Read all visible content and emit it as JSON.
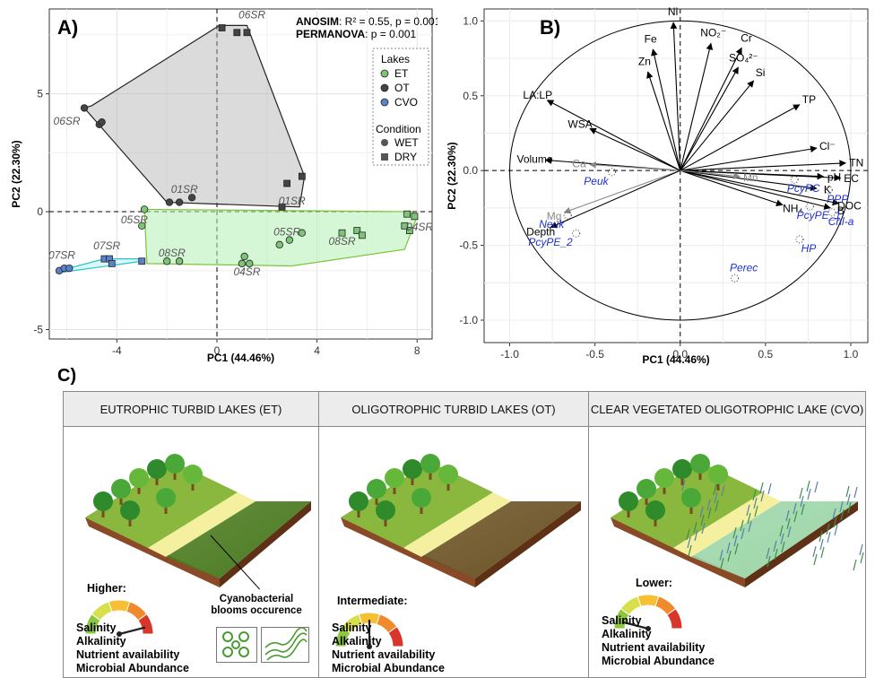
{
  "panelA": {
    "letter": "A)",
    "anosim_bold": "ANOSIM",
    "anosim_rest": ": R² = 0.55, p = 0.001",
    "permanova_bold": "PERMANOVA",
    "permanova_rest": ": p = 0.001",
    "xlabel": "PC1 (44.46%)",
    "ylabel": "PC2 (22.30%)",
    "legend": {
      "lakes_title": "Lakes",
      "lakes": [
        {
          "label": "ET",
          "color": "#7cc576"
        },
        {
          "label": "OT",
          "color": "#444444"
        },
        {
          "label": "CVO",
          "color": "#5b82c9"
        }
      ],
      "condition_title": "Condition",
      "conditions": [
        {
          "label": "WET",
          "shape": "circle"
        },
        {
          "label": "DRY",
          "shape": "square"
        }
      ]
    }
  },
  "panelB": {
    "letter": "B)",
    "xlabel": "PC1 (44.46%)",
    "ylabel": "PC2 (22.30%)"
  },
  "chart_data": [
    {
      "type": "scatter",
      "panel": "A",
      "xlabel": "PC1 (44.46%)",
      "ylabel": "PC2 (22.30%)",
      "xlim": [
        -6.7,
        8.6
      ],
      "ylim": [
        -5.4,
        8.6
      ],
      "xticks": [
        -4,
        0,
        4,
        8
      ],
      "yticks": [
        -5,
        0,
        5
      ],
      "grid": true,
      "legend_position": "top-right",
      "series": [
        {
          "name": "OT",
          "color": "#444444",
          "hull": [
            [
              0.1,
              7.9
            ],
            [
              1.2,
              7.9
            ],
            [
              3.5,
              1.5
            ],
            [
              3.3,
              0.2
            ],
            [
              -2.0,
              0.4
            ],
            [
              -5.3,
              4.4
            ],
            [
              -5.0,
              4.5
            ]
          ],
          "points": [
            {
              "x": 0.2,
              "y": 7.8,
              "shape": "square"
            },
            {
              "x": 0.8,
              "y": 7.6,
              "shape": "square"
            },
            {
              "x": 1.2,
              "y": 7.6,
              "shape": "square"
            },
            {
              "x": -5.3,
              "y": 4.4,
              "shape": "circle"
            },
            {
              "x": -4.7,
              "y": 3.7,
              "shape": "circle"
            },
            {
              "x": -4.6,
              "y": 3.8,
              "shape": "circle"
            },
            {
              "x": -1.9,
              "y": 0.4,
              "shape": "circle"
            },
            {
              "x": -1.5,
              "y": 0.4,
              "shape": "circle"
            },
            {
              "x": -1.0,
              "y": 0.6,
              "shape": "circle"
            },
            {
              "x": 2.8,
              "y": 1.2,
              "shape": "square"
            },
            {
              "x": 3.4,
              "y": 1.5,
              "shape": "square"
            },
            {
              "x": 2.6,
              "y": 0.2,
              "shape": "square"
            }
          ]
        },
        {
          "name": "ET",
          "color": "#7cc576",
          "hull": [
            [
              -2.9,
              0.1
            ],
            [
              7.8,
              0.0
            ],
            [
              8.0,
              -0.2
            ],
            [
              7.5,
              -1.6
            ],
            [
              3.0,
              -2.3
            ],
            [
              -2.8,
              -2.2
            ]
          ],
          "points": [
            {
              "x": -2.9,
              "y": 0.1,
              "shape": "circle"
            },
            {
              "x": -3.0,
              "y": -0.6,
              "shape": "circle"
            },
            {
              "x": -2.0,
              "y": -2.1,
              "shape": "circle"
            },
            {
              "x": -1.5,
              "y": -2.1,
              "shape": "circle"
            },
            {
              "x": 1.0,
              "y": -2.2,
              "shape": "circle"
            },
            {
              "x": 1.3,
              "y": -2.2,
              "shape": "circle"
            },
            {
              "x": 1.1,
              "y": -1.9,
              "shape": "circle"
            },
            {
              "x": 2.5,
              "y": -1.4,
              "shape": "circle"
            },
            {
              "x": 2.9,
              "y": -1.2,
              "shape": "circle"
            },
            {
              "x": 3.4,
              "y": -0.9,
              "shape": "circle"
            },
            {
              "x": 5.6,
              "y": -0.8,
              "shape": "square"
            },
            {
              "x": 5.8,
              "y": -1.0,
              "shape": "square"
            },
            {
              "x": 5.0,
              "y": -0.9,
              "shape": "square"
            },
            {
              "x": 7.6,
              "y": -0.1,
              "shape": "square"
            },
            {
              "x": 7.9,
              "y": -0.2,
              "shape": "square"
            },
            {
              "x": 7.7,
              "y": -0.8,
              "shape": "square"
            },
            {
              "x": 7.5,
              "y": -0.6,
              "shape": "square"
            }
          ]
        },
        {
          "name": "CVO",
          "color": "#5b82c9",
          "hull": [
            [
              -6.3,
              -2.5
            ],
            [
              -4.5,
              -2.0
            ],
            [
              -3.0,
              -2.0
            ],
            [
              -3.0,
              -2.1
            ],
            [
              -6.4,
              -2.6
            ]
          ],
          "points": [
            {
              "x": -6.3,
              "y": -2.5,
              "shape": "circle"
            },
            {
              "x": -6.1,
              "y": -2.4,
              "shape": "circle"
            },
            {
              "x": -5.9,
              "y": -2.4,
              "shape": "circle"
            },
            {
              "x": -4.5,
              "y": -2.0,
              "shape": "square"
            },
            {
              "x": -4.3,
              "y": -2.0,
              "shape": "square"
            },
            {
              "x": -4.2,
              "y": -2.2,
              "shape": "square"
            },
            {
              "x": -3.0,
              "y": -2.1,
              "shape": "square"
            }
          ]
        }
      ],
      "annotations": [
        {
          "text": "06SR",
          "x": 1.4,
          "y": 8.2
        },
        {
          "text": "06SR",
          "x": -6.0,
          "y": 3.7
        },
        {
          "text": "01SR",
          "x": -1.3,
          "y": 0.8
        },
        {
          "text": "01SR",
          "x": 3.0,
          "y": 0.3
        },
        {
          "text": "05SR",
          "x": -3.3,
          "y": -0.5
        },
        {
          "text": "05SR",
          "x": 2.8,
          "y": -1.0
        },
        {
          "text": "08SR",
          "x": -1.8,
          "y": -1.9
        },
        {
          "text": "08SR",
          "x": 5.0,
          "y": -1.4
        },
        {
          "text": "04SR",
          "x": 8.1,
          "y": -0.8
        },
        {
          "text": "04SR",
          "x": 1.2,
          "y": -2.7
        },
        {
          "text": "07SR",
          "x": -6.2,
          "y": -2.0
        },
        {
          "text": "07SR",
          "x": -4.4,
          "y": -1.6
        }
      ]
    },
    {
      "type": "scatter",
      "panel": "B",
      "xlabel": "PC1 (44.46%)",
      "ylabel": "PC2 (22.30%)",
      "xlim": [
        -1.15,
        1.1
      ],
      "ylim": [
        -1.15,
        1.08
      ],
      "xticks": [
        -1.0,
        -0.5,
        0.0,
        0.5,
        1.0
      ],
      "yticks": [
        -1.0,
        -0.5,
        0.0,
        0.5,
        1.0
      ],
      "grid": true,
      "unit_circle": true,
      "vectors": [
        {
          "label": "Ni",
          "x": -0.04,
          "y": 0.99,
          "color": "#000000"
        },
        {
          "label": "NO₂⁻",
          "x": 0.18,
          "y": 0.85,
          "color": "#000000"
        },
        {
          "label": "Cr",
          "x": 0.36,
          "y": 0.82,
          "color": "#000000"
        },
        {
          "label": "Fe",
          "x": -0.16,
          "y": 0.81,
          "color": "#000000"
        },
        {
          "label": "SO₄²⁻",
          "x": 0.34,
          "y": 0.69,
          "color": "#000000"
        },
        {
          "label": "Zn",
          "x": -0.19,
          "y": 0.66,
          "color": "#000000"
        },
        {
          "label": "Si",
          "x": 0.43,
          "y": 0.6,
          "color": "#000000"
        },
        {
          "label": "TP",
          "x": 0.7,
          "y": 0.44,
          "color": "#000000"
        },
        {
          "label": "LA:LP",
          "x": -0.78,
          "y": 0.47,
          "color": "#000000"
        },
        {
          "label": "WSA",
          "x": -0.53,
          "y": 0.28,
          "color": "#000000"
        },
        {
          "label": "Cl⁻",
          "x": 0.8,
          "y": 0.15,
          "color": "#000000"
        },
        {
          "label": "TN",
          "x": 0.97,
          "y": 0.05,
          "color": "#000000"
        },
        {
          "label": "Volume",
          "x": -0.79,
          "y": 0.07,
          "color": "#000000"
        },
        {
          "label": "Ca",
          "x": -0.53,
          "y": 0.04,
          "color": "#888888"
        },
        {
          "label": "pH",
          "x": 0.84,
          "y": -0.04,
          "color": "#000000"
        },
        {
          "label": "EC",
          "x": 0.94,
          "y": -0.05,
          "color": "#000000"
        },
        {
          "label": "DOC",
          "x": 0.93,
          "y": -0.22,
          "color": "#000000"
        },
        {
          "label": "K",
          "x": 0.8,
          "y": -0.12,
          "color": "#000000"
        },
        {
          "label": "B",
          "x": 0.88,
          "y": -0.25,
          "color": "#000000"
        },
        {
          "label": "NH₄",
          "x": 0.6,
          "y": -0.23,
          "color": "#000000"
        },
        {
          "label": "Mg",
          "x": -0.68,
          "y": -0.28,
          "color": "#888888"
        },
        {
          "label": "Depth",
          "x": -0.76,
          "y": -0.38,
          "color": "#000000"
        },
        {
          "label": "Mn",
          "x": 0.35,
          "y": -0.04,
          "color": "#888888"
        },
        {
          "label": "Peuk",
          "x": -0.4,
          "y": -0.01,
          "color": "#1f2fd6"
        },
        {
          "label": "PcyPC",
          "x": 0.67,
          "y": -0.06,
          "color": "#1f2fd6"
        },
        {
          "label": "PPP",
          "x": 0.87,
          "y": -0.13,
          "color": "#1f2fd6"
        },
        {
          "label": "PcyPE_1",
          "x": 0.76,
          "y": -0.24,
          "color": "#1f2fd6"
        },
        {
          "label": "Chl-a",
          "x": 0.89,
          "y": -0.28,
          "color": "#1f2fd6"
        },
        {
          "label": "Neuk",
          "x": -0.66,
          "y": -0.3,
          "color": "#1f2fd6"
        },
        {
          "label": "PcyPE_2",
          "x": -0.61,
          "y": -0.42,
          "color": "#1f2fd6"
        },
        {
          "label": "HP",
          "x": 0.7,
          "y": -0.46,
          "color": "#1f2fd6"
        },
        {
          "label": "Perec",
          "x": 0.32,
          "y": -0.72,
          "color": "#1f2fd6"
        }
      ]
    }
  ],
  "panelC": {
    "letter": "C)",
    "boxes": [
      {
        "title": "EUTROPHIC TURBID LAKES (ET)",
        "level": "Higher:",
        "gauge": 0.92,
        "traits": [
          "Salinity",
          "Alkalinity",
          "Nutrient availability",
          "Microbial Abundance"
        ],
        "water_color": "#4a7a1f",
        "annotation": "Cyanobacterial blooms occurence"
      },
      {
        "title": "OLIGOTROPHIC TURBID LAKES (OT)",
        "level": "Intermediate:",
        "gauge": 0.5,
        "traits": [
          "Salinity",
          "Alkalinity",
          "Nutrient availability",
          "Microbial Abundance"
        ],
        "water_color": "#6b5224"
      },
      {
        "title": "CLEAR VEGETATED OLIGOTROPHIC LAKE (CVO)",
        "level": "Lower:",
        "gauge": 0.08,
        "traits": [
          "Salinity",
          "Alkalinity",
          "Nutrient availability",
          "Microbial Abundance"
        ],
        "water_color": "#9dd6a8"
      }
    ]
  }
}
